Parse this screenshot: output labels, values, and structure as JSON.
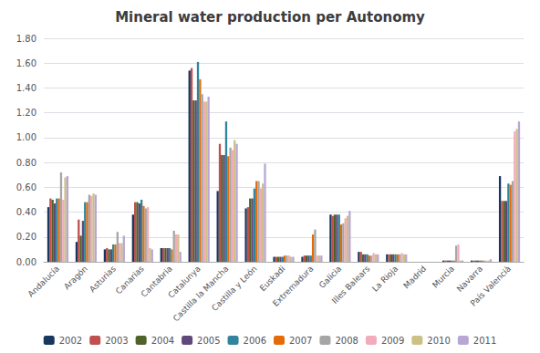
{
  "chart_data": {
    "type": "bar",
    "title": "Mineral water production per Autonomy",
    "categories": [
      "Andalucía",
      "Aragón",
      "Asturias",
      "Canarias",
      "Cantabria",
      "Catalunya",
      "Castilla la Mancha",
      "Castilla y León",
      "Euskadi",
      "Extremadura",
      "Galicia",
      "Illes Balears",
      "La Rioja",
      "Madrid",
      "Murcia",
      "Navarra",
      "País Valencià"
    ],
    "series": [
      {
        "name": "2002",
        "color": "#17375E",
        "values": [
          0.44,
          0.16,
          0.1,
          0.38,
          0.11,
          1.54,
          0.57,
          0.43,
          0.04,
          0.04,
          0.38,
          0.08,
          0.06,
          0.0,
          0.01,
          0.01,
          0.69
        ]
      },
      {
        "name": "2003",
        "color": "#C0504D",
        "values": [
          0.51,
          0.34,
          0.11,
          0.48,
          0.11,
          1.56,
          0.95,
          0.44,
          0.04,
          0.05,
          0.37,
          0.08,
          0.06,
          0.0,
          0.01,
          0.01,
          0.49
        ]
      },
      {
        "name": "2004",
        "color": "#4F6228",
        "values": [
          0.5,
          0.21,
          0.1,
          0.48,
          0.11,
          1.3,
          0.86,
          0.51,
          0.04,
          0.05,
          0.38,
          0.06,
          0.06,
          0.0,
          0.01,
          0.01,
          0.49
        ]
      },
      {
        "name": "2005",
        "color": "#60497A",
        "values": [
          0.47,
          0.33,
          0.1,
          0.47,
          0.11,
          1.3,
          0.86,
          0.51,
          0.04,
          0.05,
          0.38,
          0.06,
          0.06,
          0.0,
          0.01,
          0.01,
          0.49
        ]
      },
      {
        "name": "2006",
        "color": "#31849B",
        "values": [
          0.51,
          0.48,
          0.14,
          0.5,
          0.11,
          1.61,
          1.13,
          0.59,
          0.04,
          0.05,
          0.38,
          0.06,
          0.06,
          0.0,
          0.01,
          0.01,
          0.63
        ]
      },
      {
        "name": "2007",
        "color": "#E36C09",
        "values": [
          0.51,
          0.48,
          0.14,
          0.45,
          0.1,
          1.47,
          0.85,
          0.65,
          0.05,
          0.22,
          0.3,
          0.05,
          0.06,
          0.0,
          0.01,
          0.01,
          0.62
        ]
      },
      {
        "name": "2008",
        "color": "#A6A6A6",
        "values": [
          0.72,
          0.54,
          0.24,
          0.43,
          0.25,
          1.35,
          0.92,
          0.65,
          0.05,
          0.26,
          0.31,
          0.05,
          0.06,
          0.0,
          0.13,
          0.01,
          0.65
        ]
      },
      {
        "name": "2009",
        "color": "#F2ABBA",
        "values": [
          0.5,
          0.53,
          0.15,
          0.44,
          0.22,
          1.29,
          0.9,
          0.59,
          0.05,
          0.05,
          0.35,
          0.07,
          0.07,
          0.0,
          0.14,
          0.01,
          1.05
        ]
      },
      {
        "name": "2010",
        "color": "#CCC085",
        "values": [
          0.68,
          0.55,
          0.15,
          0.11,
          0.22,
          1.29,
          0.98,
          0.63,
          0.04,
          0.05,
          0.37,
          0.06,
          0.06,
          0.0,
          0.01,
          0.01,
          1.07
        ]
      },
      {
        "name": "2011",
        "color": "#B8A7D4",
        "values": [
          0.69,
          0.54,
          0.21,
          0.1,
          0.08,
          1.33,
          0.95,
          0.79,
          0.04,
          0.05,
          0.41,
          0.06,
          0.06,
          0.0,
          0.01,
          0.02,
          1.13
        ]
      }
    ],
    "ylim": [
      0.0,
      1.8
    ],
    "yticks": [
      {
        "value": 0.0,
        "label": "0.00"
      },
      {
        "value": 0.2,
        "label": "0.20"
      },
      {
        "value": 0.4,
        "label": "0.40"
      },
      {
        "value": 0.6,
        "label": "0.60"
      },
      {
        "value": 0.8,
        "label": "0.80"
      },
      {
        "value": 1.0,
        "label": "1.00"
      },
      {
        "value": 1.2,
        "label": "1.20"
      },
      {
        "value": 1.4,
        "label": "1.40"
      },
      {
        "value": 1.6,
        "label": "1.60"
      },
      {
        "value": 1.8,
        "label": "1.80"
      }
    ],
    "grid": true,
    "legend": "bottom"
  }
}
